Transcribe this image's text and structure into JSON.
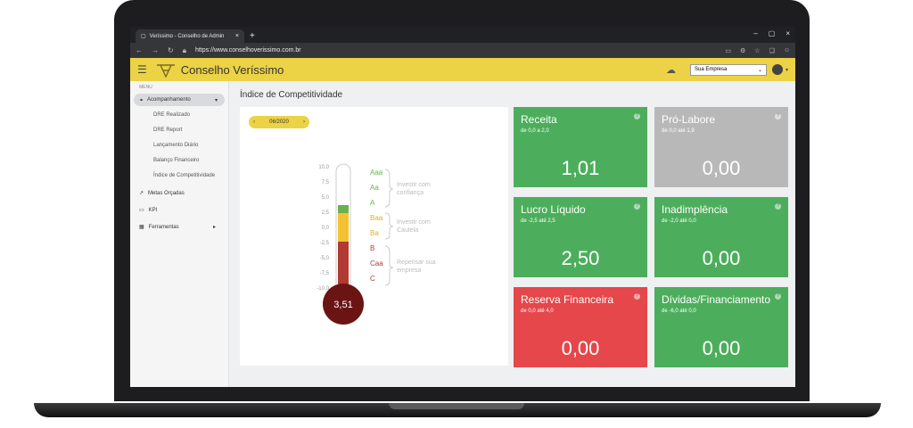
{
  "browser": {
    "tab_title": "Veríssimo - Conselho de Admin",
    "url": "https://www.conselhoverissimo.com.br"
  },
  "header": {
    "brand": "Conselho Veríssimo",
    "company_select": "Sua Empresa"
  },
  "sidebar": {
    "menu_title": "MENU",
    "active": "Acompanhamento",
    "sub_items": [
      "DRE Realizado",
      "DRE Report",
      "Lançamento Diário",
      "Balanço Financeiro",
      "Índice de Competitividade"
    ],
    "items": [
      "Metas Orçadas",
      "KPI",
      "Ferramentas"
    ]
  },
  "page": {
    "title": "Índice de Competitividade",
    "period": "06/2020"
  },
  "thermometer": {
    "value": "3,51",
    "scale": [
      "10,0",
      "7,5",
      "5,0",
      "2,5",
      "0,0",
      "-2,5",
      "-5,0",
      "-7,5",
      "-10,0"
    ],
    "ratings": [
      "Aaa",
      "Aa",
      "A",
      "Baa",
      "Ba",
      "B",
      "Caa",
      "C"
    ],
    "advice": [
      {
        "line1": "Investir com",
        "line2": "confiança"
      },
      {
        "line1": "Investir com",
        "line2": "Cautela"
      },
      {
        "line1": "Repensar sua",
        "line2": "empresa"
      }
    ],
    "colors": {
      "green": "#6ab04c",
      "yellow": "#f2c230",
      "red": "#b23a32",
      "bulb": "#6b1414"
    }
  },
  "cards": [
    {
      "title": "Receita",
      "range": "de 0,0 a 2,0",
      "value": "1,01",
      "color": "green"
    },
    {
      "title": "Pró-Labore",
      "range": "de 0,0 até 1,9",
      "value": "0,00",
      "color": "grey"
    },
    {
      "title": "Lucro Líquido",
      "range": "de -2,5 até 2,5",
      "value": "2,50",
      "color": "green"
    },
    {
      "title": "Inadimplência",
      "range": "de -2,0 até 0,0",
      "value": "0,00",
      "color": "green"
    },
    {
      "title": "Reserva Financeira",
      "range": "de 0,0 até 4,0",
      "value": "0,00",
      "color": "red"
    },
    {
      "title": "Dívidas/Financiamento",
      "range": "de -6,0 até 0,0",
      "value": "0,00",
      "color": "green"
    }
  ]
}
